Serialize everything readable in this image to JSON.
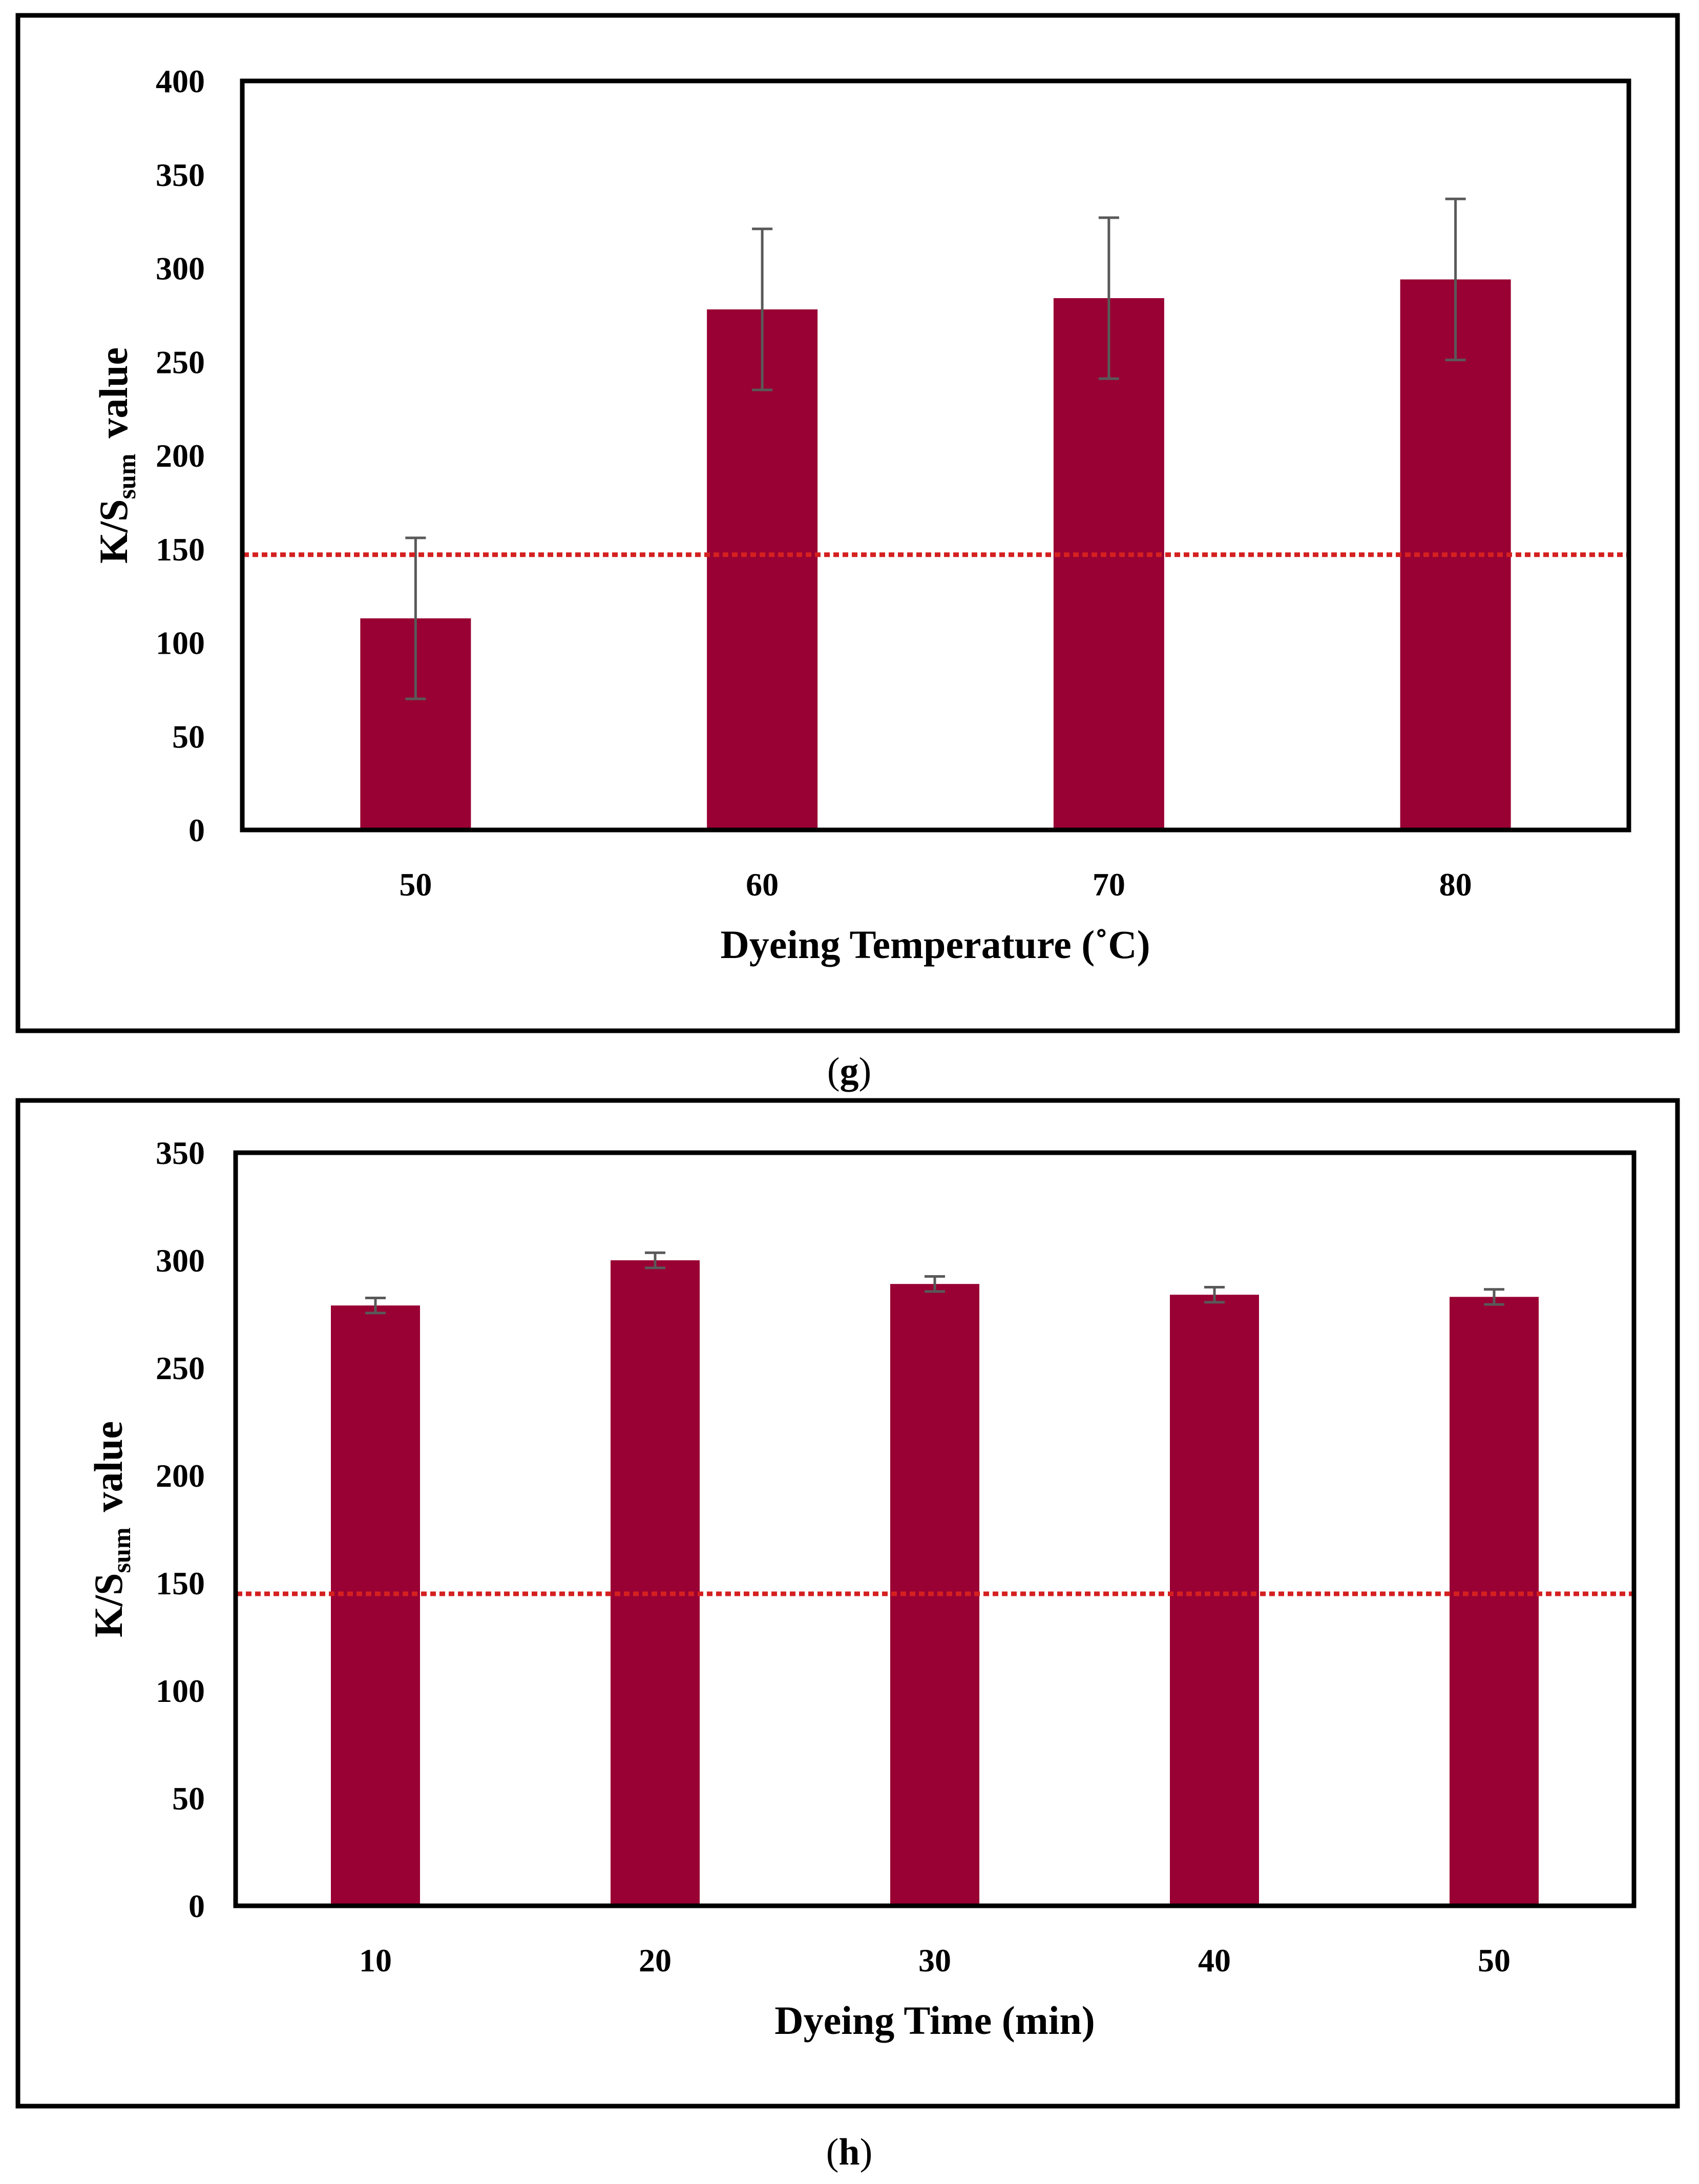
{
  "bar_color": "#990033",
  "error_color": "#595959",
  "ref_line_color": "#d42020",
  "chart_data": [
    {
      "type": "bar",
      "panel": "g",
      "caption_open": "(",
      "caption_letter": "g",
      "caption_close": ")",
      "categories": [
        "50",
        "60",
        "70",
        "80"
      ],
      "values": [
        113,
        278,
        284,
        294
      ],
      "errors": [
        43,
        43,
        43,
        43
      ],
      "reference_line": 147,
      "xlabel": "Dyeing Temperature (˚C)",
      "ylabel_main": "K/S",
      "ylabel_sub": "sum",
      "ylabel_tail": "value",
      "ylim": [
        0,
        400
      ],
      "yticks": [
        "0",
        "50",
        "100",
        "150",
        "200",
        "250",
        "300",
        "350",
        "400"
      ]
    },
    {
      "type": "bar",
      "panel": "h",
      "caption_open": "(",
      "caption_letter": "h",
      "caption_close": ")",
      "categories": [
        "10",
        "20",
        "30",
        "40",
        "50"
      ],
      "values": [
        279,
        300,
        289,
        284,
        283
      ],
      "errors": [
        3.5,
        3.5,
        3.5,
        3.5,
        3.5
      ],
      "reference_line": 145,
      "xlabel": "Dyeing Time (min)",
      "ylabel_main": "K/S",
      "ylabel_sub": "sum",
      "ylabel_tail": "value",
      "ylim": [
        0,
        350
      ],
      "yticks": [
        "0",
        "50",
        "100",
        "150",
        "200",
        "250",
        "300",
        "350"
      ]
    }
  ]
}
